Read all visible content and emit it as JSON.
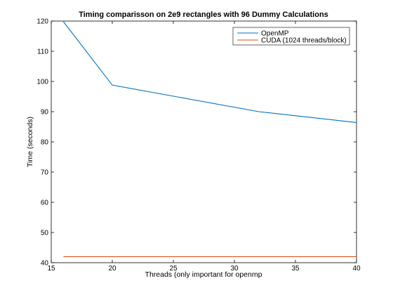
{
  "chart_data": {
    "type": "line",
    "title": "Timing comparisson on 2e9 rectangles with 96 Dummy Calculations",
    "xlabel": "Threads (only important for openmp",
    "ylabel": "Time (seconds)",
    "xlim": [
      15,
      40
    ],
    "ylim": [
      40,
      120
    ],
    "xticks": [
      15,
      20,
      25,
      30,
      35,
      40
    ],
    "yticks": [
      40,
      50,
      60,
      70,
      80,
      90,
      100,
      110,
      120
    ],
    "grid": false,
    "legend_position": "top-right",
    "series": [
      {
        "name": "OpenMP",
        "color": "#0072bd",
        "x": [
          16,
          20,
          32,
          40
        ],
        "y": [
          119.8,
          98.8,
          90.0,
          86.4
        ]
      },
      {
        "name": "CUDA (1024 threads/block)",
        "color": "#d95319",
        "x": [
          16,
          40
        ],
        "y": [
          42.0,
          42.0
        ]
      }
    ]
  }
}
